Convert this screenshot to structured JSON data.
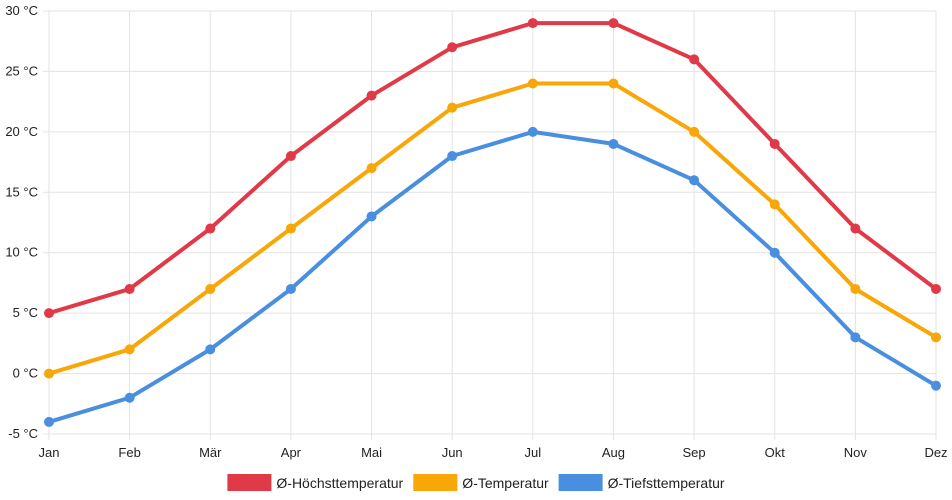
{
  "chart_data": {
    "type": "line",
    "categories": [
      "Jan",
      "Feb",
      "Mär",
      "Apr",
      "Mai",
      "Jun",
      "Jul",
      "Aug",
      "Sep",
      "Okt",
      "Nov",
      "Dez"
    ],
    "ylim": [
      -5,
      30
    ],
    "yticks": [
      -5,
      0,
      5,
      10,
      15,
      20,
      25,
      30
    ],
    "y_unit": " °C",
    "grid": true,
    "legend_position": "bottom",
    "series": [
      {
        "name": "Ø-Höchsttemperatur",
        "color": "#e03a48",
        "values": [
          5,
          7,
          12,
          18,
          23,
          27,
          29,
          29,
          26,
          19,
          12,
          7
        ]
      },
      {
        "name": "Ø-Temperatur",
        "color": "#f8a608",
        "values": [
          0,
          2,
          7,
          12,
          17,
          22,
          24,
          24,
          20,
          14,
          7,
          3
        ]
      },
      {
        "name": "Ø-Tiefsttemperatur",
        "color": "#4a8ee0",
        "values": [
          -4,
          -2,
          2,
          7,
          13,
          18,
          20,
          19,
          16,
          10,
          3,
          -1
        ]
      }
    ]
  }
}
